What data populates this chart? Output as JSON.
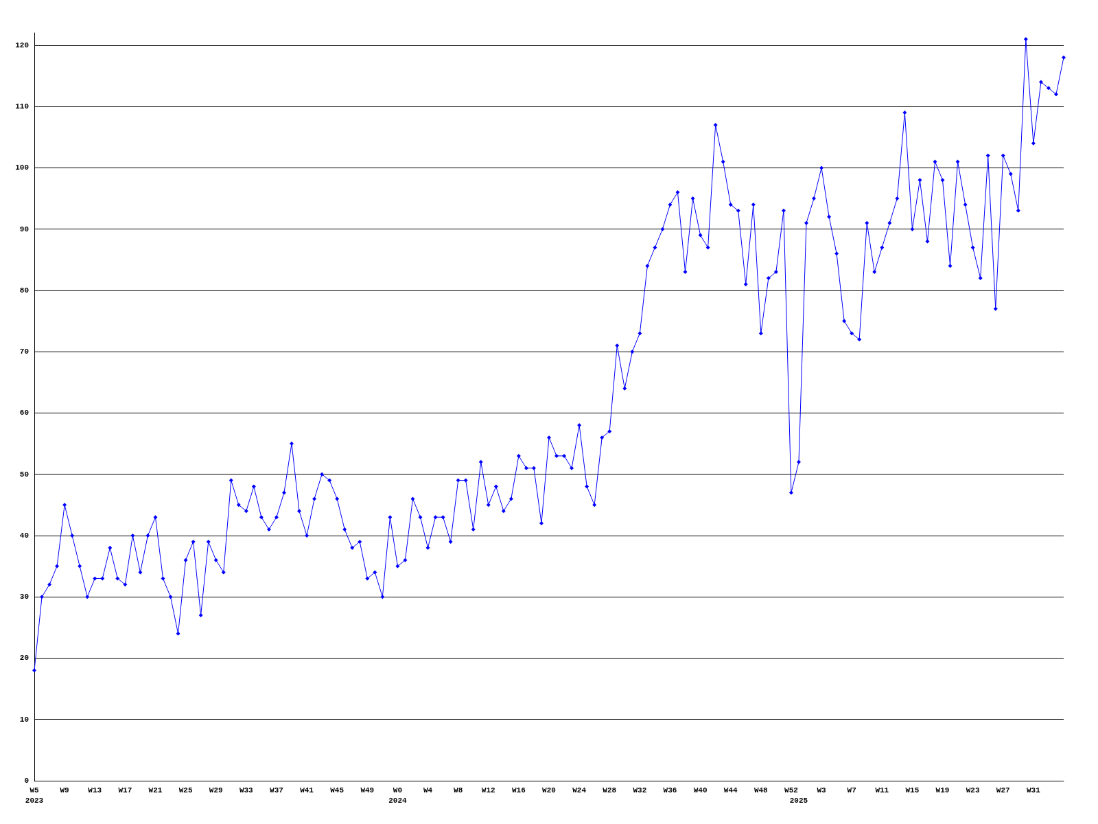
{
  "chart_data": {
    "type": "line",
    "categories": [
      "W5\n2023",
      null,
      null,
      null,
      "W9",
      null,
      null,
      null,
      "W13",
      null,
      null,
      null,
      "W17",
      null,
      null,
      null,
      "W21",
      null,
      null,
      null,
      "W25",
      null,
      null,
      null,
      "W29",
      null,
      null,
      null,
      "W33",
      null,
      null,
      null,
      "W37",
      null,
      null,
      null,
      "W41",
      null,
      null,
      null,
      "W45",
      null,
      null,
      null,
      "W49",
      null,
      null,
      null,
      "W0\n2024",
      null,
      null,
      null,
      "W4",
      null,
      null,
      null,
      "W8",
      null,
      null,
      null,
      "W12",
      null,
      null,
      null,
      "W16",
      null,
      null,
      null,
      "W20",
      null,
      null,
      null,
      "W24",
      null,
      null,
      null,
      "W28",
      null,
      null,
      null,
      "W32",
      null,
      null,
      null,
      "W36",
      null,
      null,
      null,
      "W40",
      null,
      null,
      null,
      "W44",
      null,
      null,
      null,
      "W48",
      null,
      null,
      null,
      "W52",
      "\n2025",
      null,
      null,
      "W3",
      null,
      null,
      null,
      "W7",
      null,
      null,
      null,
      "W11",
      null,
      null,
      null,
      "W15",
      null,
      null,
      null,
      "W19",
      null,
      null,
      null,
      "W23",
      null,
      null,
      null,
      "W27",
      null,
      null,
      null,
      "W31",
      null,
      null,
      null,
      null
    ],
    "values": [
      18,
      30,
      32,
      35,
      45,
      40,
      35,
      30,
      33,
      33,
      38,
      33,
      32,
      40,
      34,
      40,
      43,
      33,
      30,
      24,
      36,
      39,
      27,
      39,
      36,
      34,
      49,
      45,
      44,
      48,
      43,
      41,
      43,
      47,
      55,
      44,
      40,
      46,
      50,
      49,
      46,
      41,
      38,
      39,
      33,
      34,
      30,
      43,
      35,
      36,
      46,
      43,
      38,
      43,
      43,
      39,
      49,
      49,
      41,
      52,
      45,
      48,
      44,
      46,
      53,
      51,
      51,
      42,
      56,
      53,
      53,
      51,
      58,
      48,
      45,
      56,
      57,
      71,
      64,
      70,
      73,
      84,
      87,
      90,
      94,
      96,
      83,
      95,
      89,
      87,
      107,
      101,
      94,
      93,
      81,
      94,
      73,
      82,
      83,
      93,
      47,
      52,
      91,
      95,
      100,
      92,
      86,
      75,
      73,
      72,
      91,
      83,
      87,
      91,
      95,
      109,
      90,
      98,
      88,
      101,
      98,
      84,
      101,
      94,
      87,
      82,
      102,
      77,
      102,
      99,
      93,
      121,
      104,
      114,
      113,
      112,
      118
    ],
    "color": "#0000ff",
    "ylim": [
      0,
      122
    ],
    "yticks": [
      0,
      10,
      20,
      30,
      40,
      50,
      60,
      70,
      80,
      90,
      100,
      110,
      120
    ],
    "grid": "y",
    "marker": "diamond",
    "line_style": "solid"
  }
}
